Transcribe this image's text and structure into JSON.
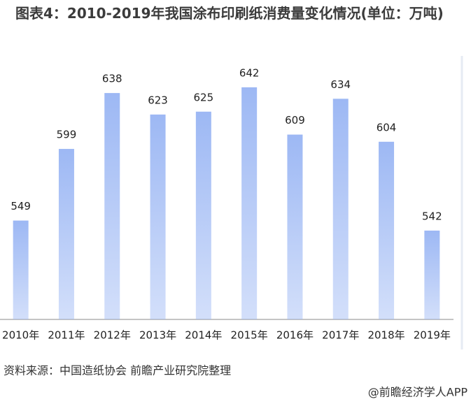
{
  "chart_data": {
    "type": "bar",
    "title": "图表4：2010-2019年我国涂布印刷纸消费量变化情况(单位：万吨)",
    "categories": [
      "2010年",
      "2011年",
      "2012年",
      "2013年",
      "2014年",
      "2015年",
      "2016年",
      "2017年",
      "2018年",
      "2019年"
    ],
    "values": [
      549,
      599,
      638,
      623,
      625,
      642,
      609,
      634,
      604,
      542
    ],
    "color": "#9db8f4",
    "ylim": [
      480,
      660
    ]
  },
  "source": "资料来源：中国造纸协会 前瞻产业研究院整理",
  "footer": "@前瞻经济学人APP"
}
